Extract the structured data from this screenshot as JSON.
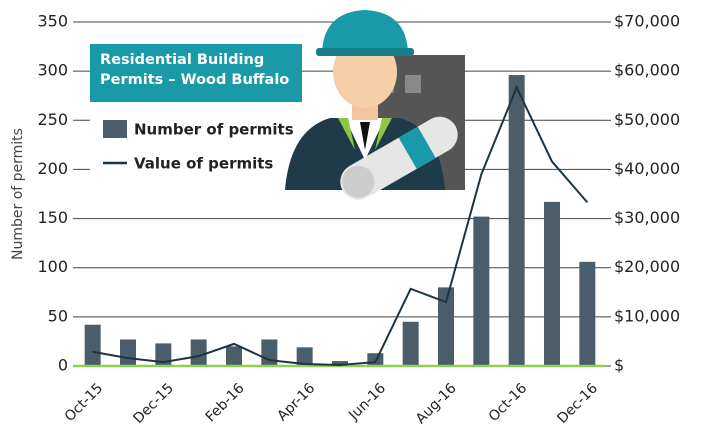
{
  "chart_data": {
    "type": "bar-line",
    "title": "Residential Building Permits – Wood Buffalo",
    "y_label": "Number of permits",
    "categories": [
      "Oct-15",
      null,
      "Dec-15",
      null,
      "Feb-16",
      null,
      "Apr-16",
      null,
      "Jun-16",
      null,
      "Aug-16",
      null,
      "Oct-16",
      null,
      "Dec-16"
    ],
    "series": [
      {
        "name": "Number of permits",
        "color": "#4b5d68",
        "values": [
          42,
          27,
          23,
          27,
          20,
          27,
          19,
          5,
          13,
          45,
          80,
          152,
          296,
          167,
          106
        ]
      },
      {
        "name": "Value of permits",
        "color": "#1c3545",
        "axis": "y2",
        "values": [
          2900,
          1600,
          800,
          2000,
          4500,
          1200,
          400,
          200,
          800,
          15700,
          13000,
          39000,
          56700,
          41600,
          33300
        ]
      }
    ],
    "ylim": [
      0,
      350
    ],
    "yticks": [
      0,
      50,
      100,
      150,
      200,
      250,
      300,
      350
    ],
    "y2lim": [
      0,
      70000
    ],
    "y2ticks": [
      {
        "value": 0,
        "label": "$"
      },
      {
        "value": 10000,
        "label": "$10,000"
      },
      {
        "value": 20000,
        "label": "$20,000"
      },
      {
        "value": 30000,
        "label": "$30,000"
      },
      {
        "value": 40000,
        "label": "$40,000"
      },
      {
        "value": 50000,
        "label": "$50,000"
      },
      {
        "value": 60000,
        "label": "$60,000"
      },
      {
        "value": 70000,
        "label": "$70,000"
      }
    ],
    "grid": true
  }
}
